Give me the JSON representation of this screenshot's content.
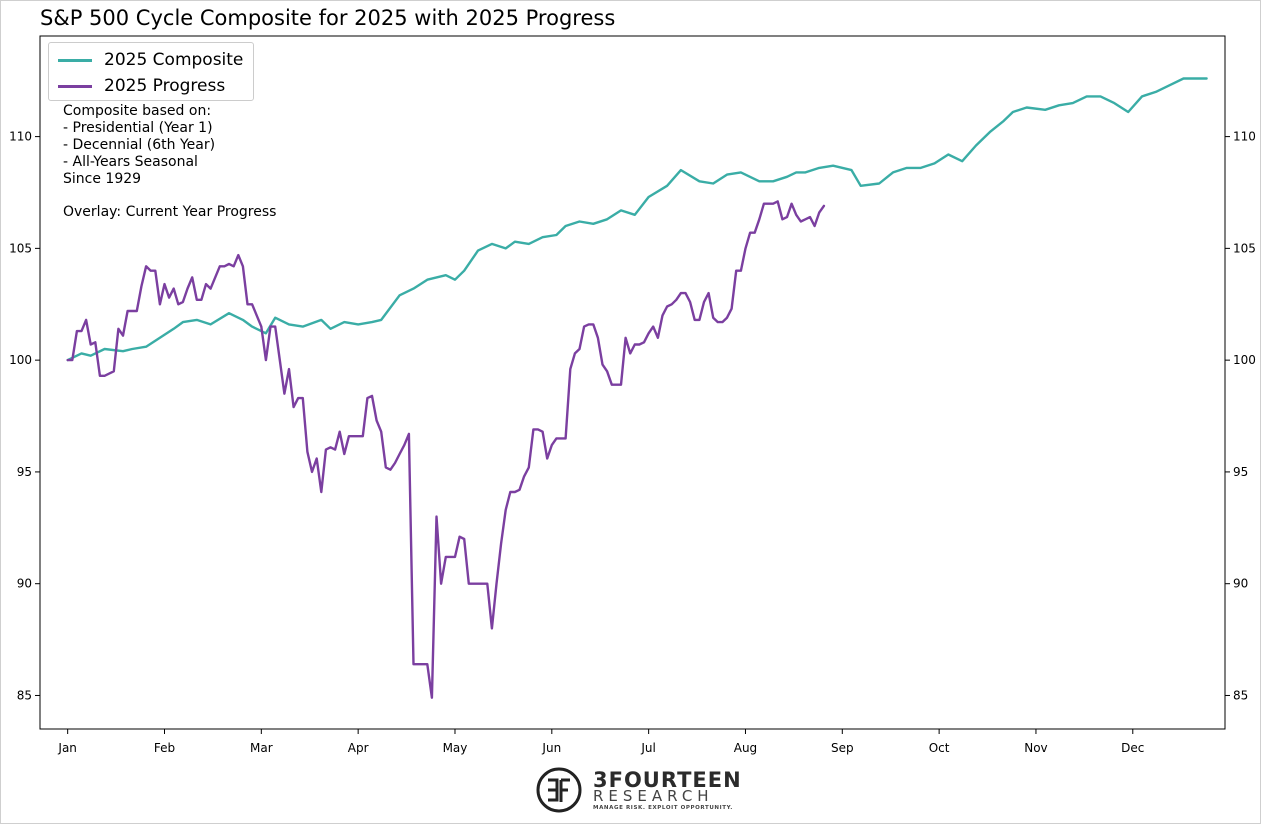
{
  "chart_data": {
    "type": "line",
    "title": "S&P 500 Cycle Composite for 2025 with 2025 Progress",
    "xlabel": "",
    "ylabel": "",
    "x_tick_labels": [
      "Jan",
      "Feb",
      "Mar",
      "Apr",
      "May",
      "Jun",
      "Jul",
      "Aug",
      "Sep",
      "Oct",
      "Nov",
      "Dec"
    ],
    "x_unit": "trading day of year",
    "xlim": [
      -6,
      251
    ],
    "ylim": [
      83.5,
      114.5
    ],
    "y_ticks": [
      85,
      90,
      95,
      100,
      105,
      110
    ],
    "y_tick_labels": [
      "85",
      "90",
      "95",
      "100",
      "105",
      "110"
    ],
    "grid": false,
    "legend_position": "top-left",
    "series": [
      {
        "name": "2025 Composite",
        "color": "#3aada6",
        "x": [
          0,
          3,
          5,
          8,
          12,
          14,
          17,
          20,
          23,
          25,
          28,
          31,
          35,
          38,
          40,
          43,
          45,
          48,
          51,
          55,
          57,
          60,
          63,
          66,
          68,
          72,
          75,
          78,
          82,
          84,
          86,
          89,
          92,
          95,
          97,
          100,
          103,
          106,
          108,
          111,
          114,
          117,
          120,
          123,
          126,
          130,
          133,
          137,
          140,
          143,
          146,
          150,
          153,
          156,
          158,
          160,
          163,
          166,
          170,
          172,
          176,
          179,
          182,
          185,
          188,
          191,
          194,
          197,
          200,
          203,
          205,
          208,
          212,
          215,
          218,
          221,
          224,
          227,
          230,
          233,
          236,
          239,
          242,
          245,
          247
        ],
        "values": [
          100.0,
          100.3,
          100.2,
          100.5,
          100.4,
          100.5,
          100.6,
          101.0,
          101.4,
          101.7,
          101.8,
          101.6,
          102.1,
          101.8,
          101.5,
          101.2,
          101.9,
          101.6,
          101.5,
          101.8,
          101.4,
          101.7,
          101.6,
          101.7,
          101.8,
          102.9,
          103.2,
          103.6,
          103.8,
          103.6,
          104.0,
          104.9,
          105.2,
          105.0,
          105.3,
          105.2,
          105.5,
          105.6,
          106.0,
          106.2,
          106.1,
          106.3,
          106.7,
          106.5,
          107.3,
          107.8,
          108.5,
          108.0,
          107.9,
          108.3,
          108.4,
          108.0,
          108.0,
          108.2,
          108.4,
          108.4,
          108.6,
          108.7,
          108.5,
          107.8,
          107.9,
          108.4,
          108.6,
          108.6,
          108.8,
          109.2,
          108.9,
          109.6,
          110.2,
          110.7,
          111.1,
          111.3,
          111.2,
          111.4,
          111.5,
          111.8,
          111.8,
          111.5,
          111.1,
          111.8,
          112.0,
          112.3,
          112.6,
          112.6,
          112.6
        ]
      },
      {
        "name": "2025 Progress",
        "color": "#7b3fa0",
        "x": [
          0,
          1,
          2,
          3,
          4,
          5,
          6,
          7,
          8,
          9,
          10,
          11,
          12,
          13,
          14,
          15,
          16,
          17,
          18,
          19,
          20,
          21,
          22,
          23,
          24,
          25,
          26,
          27,
          28,
          29,
          30,
          31,
          32,
          33,
          34,
          35,
          36,
          37,
          38,
          39,
          40,
          41,
          42,
          43,
          44,
          45,
          46,
          47,
          48,
          49,
          50,
          51,
          52,
          53,
          54,
          55,
          56,
          57,
          58,
          59,
          60,
          61,
          62,
          63,
          64,
          65,
          66,
          67,
          68,
          69,
          70,
          71,
          72,
          73,
          74,
          75,
          76,
          77,
          78,
          79,
          80,
          81,
          82,
          83,
          84,
          85,
          86,
          87,
          88,
          89,
          90,
          91,
          92,
          93,
          94,
          95,
          96,
          97,
          98,
          99,
          100,
          101,
          102,
          103,
          104,
          105,
          106,
          107,
          108,
          109,
          110,
          111,
          112,
          113,
          114,
          115,
          116,
          117,
          118,
          119,
          120,
          121,
          122,
          123,
          124,
          125,
          126,
          127,
          128,
          129,
          130,
          131,
          132,
          133,
          134,
          135,
          136,
          137,
          138,
          139,
          140,
          141,
          142,
          143,
          144,
          145,
          146,
          147,
          148,
          149,
          150,
          151,
          152,
          153,
          154,
          155,
          156,
          157,
          158,
          159,
          160,
          161,
          162,
          163,
          164
        ],
        "values": [
          100.0,
          100.0,
          101.3,
          101.3,
          101.8,
          100.7,
          100.8,
          99.3,
          99.3,
          99.4,
          99.5,
          101.4,
          101.1,
          102.2,
          102.2,
          102.2,
          103.3,
          104.2,
          104.0,
          104.0,
          102.5,
          103.4,
          102.8,
          103.2,
          102.5,
          102.6,
          103.2,
          103.7,
          102.7,
          102.7,
          103.4,
          103.2,
          103.7,
          104.2,
          104.2,
          104.3,
          104.2,
          104.7,
          104.2,
          102.5,
          102.5,
          102.0,
          101.5,
          100.0,
          101.5,
          101.5,
          100.0,
          98.5,
          99.6,
          97.9,
          98.3,
          98.3,
          95.9,
          95.0,
          95.6,
          94.1,
          96.0,
          96.1,
          96.0,
          96.8,
          95.8,
          96.6,
          96.6,
          96.6,
          96.6,
          98.3,
          98.4,
          97.3,
          96.8,
          95.2,
          95.1,
          95.4,
          95.8,
          96.2,
          96.7,
          86.4,
          86.4,
          86.4,
          86.4,
          84.9,
          93.0,
          90.0,
          91.2,
          91.2,
          91.2,
          92.1,
          92.0,
          90.0,
          90.0,
          90.0,
          90.0,
          90.0,
          88.0,
          90.0,
          91.8,
          93.3,
          94.1,
          94.1,
          94.2,
          94.8,
          95.2,
          96.9,
          96.9,
          96.8,
          95.6,
          96.2,
          96.5,
          96.5,
          96.5,
          99.6,
          100.3,
          100.5,
          101.5,
          101.6,
          101.6,
          101.0,
          99.8,
          99.5,
          98.9,
          98.9,
          98.9,
          101.0,
          100.3,
          100.7,
          100.7,
          100.8,
          101.2,
          101.5,
          101.0,
          102.0,
          102.4,
          102.5,
          102.7,
          103.0,
          103.0,
          102.6,
          101.8,
          101.8,
          102.6,
          103.0,
          101.9,
          101.7,
          101.7,
          101.9,
          102.3,
          104.0,
          104.0,
          105.0,
          105.7,
          105.7,
          106.3,
          107.0,
          107.0,
          107.0,
          107.1,
          106.3,
          106.4,
          107.0,
          106.5,
          106.2,
          106.3,
          106.4,
          106.0,
          106.6,
          106.9
        ]
      }
    ]
  },
  "chart_title": "S&P 500 Cycle Composite for 2025 with 2025 Progress",
  "legend": {
    "composite_label": "2025 Composite",
    "progress_label": "2025 Progress",
    "composite_color": "#3aada6",
    "progress_color": "#7b3fa0"
  },
  "annotation": {
    "line1": "Composite based on:",
    "line2": "- Presidential (Year 1)",
    "line3": "- Decennial (6th Year)",
    "line4": "- All-Years Seasonal",
    "line5": "Since 1929",
    "line6": "Overlay: Current Year Progress"
  },
  "branding": {
    "name": "3FOURTEEN",
    "sub": "RESEARCH",
    "tagline": "MANAGE RISK. EXPLOIT OPPORTUNITY."
  }
}
